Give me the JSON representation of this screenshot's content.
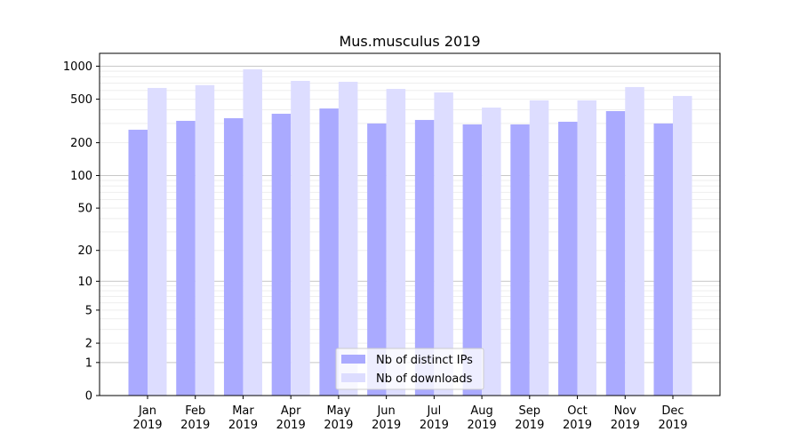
{
  "chart_data": {
    "type": "bar",
    "title": "Mus.musculus 2019",
    "xlabel": "",
    "ylabel": "",
    "yscale": "log(1+y)",
    "ylim": [
      0,
      1300
    ],
    "yticks": [
      0,
      1,
      2,
      5,
      10,
      20,
      50,
      100,
      200,
      500,
      1000
    ],
    "grid": true,
    "legend_position": "lower center",
    "categories": [
      "Jan\n2019",
      "Feb\n2019",
      "Mar\n2019",
      "Apr\n2019",
      "May\n2019",
      "Jun\n2019",
      "Jul\n2019",
      "Aug\n2019",
      "Sep\n2019",
      "Oct\n2019",
      "Nov\n2019",
      "Dec\n2019"
    ],
    "series": [
      {
        "name": "Nb of distinct IPs",
        "color": "#aaaaff",
        "values": [
          263,
          317,
          335,
          368,
          411,
          300,
          323,
          294,
          294,
          311,
          389,
          300
        ]
      },
      {
        "name": "Nb of downloads",
        "color": "#ddddff",
        "values": [
          633,
          672,
          936,
          734,
          720,
          620,
          576,
          419,
          487,
          487,
          645,
          535
        ]
      }
    ]
  }
}
